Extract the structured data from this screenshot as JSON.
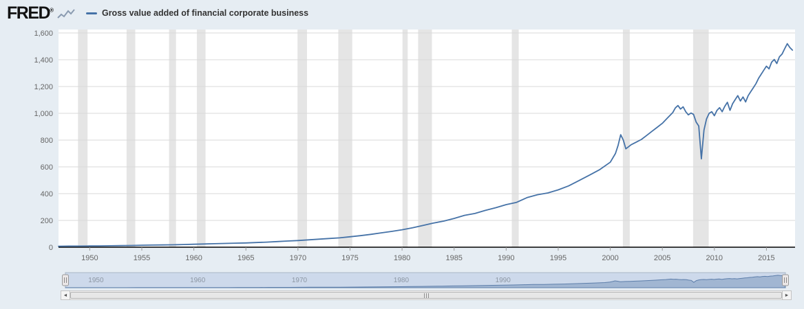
{
  "colors": {
    "page_bg": "#e6edf3",
    "plot_bg": "#ffffff",
    "grid": "#d9d9d9",
    "recession_band": "#e5e5e5",
    "axis_line": "#000000",
    "tick_label": "#666666",
    "series": "#4572a7",
    "nav_mask": "#cdd9eb",
    "nav_border": "#a9b6c6",
    "nav_fill": "#7e99bd",
    "nav_stroke": "#5d7eaa",
    "nav_label": "#8c96a3"
  },
  "header": {
    "logo_text": "FRED",
    "logo_reg": "®"
  },
  "legend": {
    "label": "Gross value added of financial corporate business"
  },
  "chart_data": {
    "type": "line",
    "title": "Gross value added of financial corporate business",
    "xlabel": "",
    "ylabel": "",
    "xlim": [
      1947,
      2017.75
    ],
    "ylim": [
      0,
      1600
    ],
    "grid": "horizontal",
    "legend_position": "top-left",
    "x_ticks": [
      1950,
      1955,
      1960,
      1965,
      1970,
      1975,
      1980,
      1985,
      1990,
      1995,
      2000,
      2005,
      2010,
      2015
    ],
    "x_tick_labels": [
      "1950",
      "1955",
      "1960",
      "1965",
      "1970",
      "1975",
      "1980",
      "1985",
      "1990",
      "1995",
      "2000",
      "2005",
      "2010",
      "2015"
    ],
    "y_ticks": [
      0,
      200,
      400,
      600,
      800,
      1000,
      1200,
      1400,
      1600
    ],
    "y_tick_labels": [
      "0",
      "200",
      "400",
      "600",
      "800",
      "1,000",
      "1,200",
      "1,400",
      "1,600"
    ],
    "recessions": [
      [
        1948.87,
        1949.79
      ],
      [
        1953.54,
        1954.37
      ],
      [
        1957.62,
        1958.29
      ],
      [
        1960.29,
        1961.12
      ],
      [
        1969.96,
        1970.87
      ],
      [
        1973.87,
        1975.21
      ],
      [
        1980.04,
        1980.54
      ],
      [
        1981.54,
        1982.87
      ],
      [
        1990.54,
        1991.21
      ],
      [
        2001.21,
        2001.87
      ],
      [
        2007.96,
        2009.46
      ]
    ],
    "series": [
      {
        "name": "Gross value added of financial corporate business",
        "color": "#4572a7",
        "points": [
          [
            1947,
            7
          ],
          [
            1948,
            8
          ],
          [
            1949,
            8
          ],
          [
            1950,
            9
          ],
          [
            1951,
            10
          ],
          [
            1952,
            11
          ],
          [
            1953,
            12
          ],
          [
            1954,
            13
          ],
          [
            1955,
            15
          ],
          [
            1956,
            16
          ],
          [
            1957,
            17
          ],
          [
            1958,
            18
          ],
          [
            1959,
            20
          ],
          [
            1960,
            22
          ],
          [
            1961,
            24
          ],
          [
            1962,
            26
          ],
          [
            1963,
            28
          ],
          [
            1964,
            30
          ],
          [
            1965,
            32
          ],
          [
            1966,
            35
          ],
          [
            1967,
            38
          ],
          [
            1968,
            42
          ],
          [
            1969,
            46
          ],
          [
            1970,
            50
          ],
          [
            1971,
            55
          ],
          [
            1972,
            60
          ],
          [
            1973,
            65
          ],
          [
            1974,
            70
          ],
          [
            1975,
            78
          ],
          [
            1976,
            86
          ],
          [
            1977,
            96
          ],
          [
            1978,
            107
          ],
          [
            1979,
            118
          ],
          [
            1980,
            130
          ],
          [
            1981,
            145
          ],
          [
            1982,
            162
          ],
          [
            1983,
            180
          ],
          [
            1984,
            195
          ],
          [
            1985,
            215
          ],
          [
            1986,
            238
          ],
          [
            1987,
            252
          ],
          [
            1988,
            275
          ],
          [
            1989,
            295
          ],
          [
            1990,
            318
          ],
          [
            1991,
            335
          ],
          [
            1992,
            370
          ],
          [
            1993,
            392
          ],
          [
            1994,
            405
          ],
          [
            1995,
            428
          ],
          [
            1996,
            458
          ],
          [
            1997,
            498
          ],
          [
            1998,
            538
          ],
          [
            1999,
            580
          ],
          [
            2000,
            635
          ],
          [
            2000.5,
            700
          ],
          [
            2000.75,
            760
          ],
          [
            2001,
            840
          ],
          [
            2001.25,
            800
          ],
          [
            2001.5,
            735
          ],
          [
            2001.75,
            750
          ],
          [
            2002,
            765
          ],
          [
            2002.5,
            785
          ],
          [
            2003,
            805
          ],
          [
            2003.5,
            835
          ],
          [
            2004,
            865
          ],
          [
            2004.5,
            895
          ],
          [
            2005,
            925
          ],
          [
            2005.5,
            965
          ],
          [
            2006,
            1005
          ],
          [
            2006.25,
            1040
          ],
          [
            2006.5,
            1058
          ],
          [
            2006.75,
            1032
          ],
          [
            2007,
            1048
          ],
          [
            2007.25,
            1012
          ],
          [
            2007.5,
            988
          ],
          [
            2007.75,
            1002
          ],
          [
            2008,
            992
          ],
          [
            2008.25,
            935
          ],
          [
            2008.5,
            905
          ],
          [
            2008.75,
            660
          ],
          [
            2009,
            875
          ],
          [
            2009.25,
            958
          ],
          [
            2009.5,
            1000
          ],
          [
            2009.75,
            1012
          ],
          [
            2010,
            982
          ],
          [
            2010.25,
            1022
          ],
          [
            2010.5,
            1042
          ],
          [
            2010.75,
            1012
          ],
          [
            2011,
            1052
          ],
          [
            2011.25,
            1082
          ],
          [
            2011.5,
            1022
          ],
          [
            2011.75,
            1072
          ],
          [
            2012,
            1102
          ],
          [
            2012.25,
            1132
          ],
          [
            2012.5,
            1092
          ],
          [
            2012.75,
            1122
          ],
          [
            2013,
            1085
          ],
          [
            2013.25,
            1132
          ],
          [
            2013.5,
            1162
          ],
          [
            2013.75,
            1192
          ],
          [
            2014,
            1222
          ],
          [
            2014.25,
            1262
          ],
          [
            2014.5,
            1292
          ],
          [
            2014.75,
            1322
          ],
          [
            2015,
            1352
          ],
          [
            2015.25,
            1332
          ],
          [
            2015.5,
            1382
          ],
          [
            2015.75,
            1402
          ],
          [
            2016,
            1372
          ],
          [
            2016.25,
            1422
          ],
          [
            2016.5,
            1442
          ],
          [
            2016.75,
            1482
          ],
          [
            2017,
            1520
          ],
          [
            2017.25,
            1492
          ],
          [
            2017.5,
            1472
          ]
        ]
      }
    ]
  },
  "navigator": {
    "tick_years": [
      1950,
      1960,
      1970,
      1980,
      1990
    ],
    "tick_labels": [
      "1950",
      "1960",
      "1970",
      "1980",
      "1990"
    ]
  },
  "scrollbar": {
    "left_arrow": "◄",
    "right_arrow": "►"
  }
}
